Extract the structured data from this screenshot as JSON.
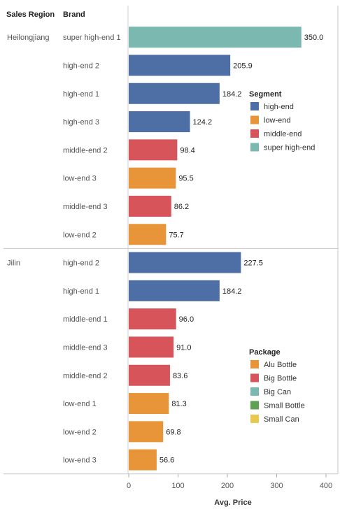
{
  "chart_data": {
    "type": "bar",
    "orientation": "horizontal",
    "row_headers": {
      "region": "Sales Region",
      "brand": "Brand"
    },
    "xlabel": "Avg. Price",
    "xlim": [
      0,
      400
    ],
    "xticks": [
      0,
      100,
      200,
      300,
      400
    ],
    "groups": [
      {
        "region": "Heilongjiang",
        "bars": [
          {
            "brand": "super high-end 1",
            "value": 350.0,
            "label": "350.0",
            "segment": "super high-end"
          },
          {
            "brand": "high-end 2",
            "value": 205.9,
            "label": "205.9",
            "segment": "high-end"
          },
          {
            "brand": "high-end 1",
            "value": 184.2,
            "label": "184.2",
            "segment": "high-end"
          },
          {
            "brand": "high-end 3",
            "value": 124.2,
            "label": "124.2",
            "segment": "high-end"
          },
          {
            "brand": "middle-end 2",
            "value": 98.4,
            "label": "98.4",
            "segment": "middle-end"
          },
          {
            "brand": "low-end 3",
            "value": 95.5,
            "label": "95.5",
            "segment": "low-end"
          },
          {
            "brand": "middle-end 3",
            "value": 86.2,
            "label": "86.2",
            "segment": "middle-end"
          },
          {
            "brand": "low-end 2",
            "value": 75.7,
            "label": "75.7",
            "segment": "low-end"
          }
        ]
      },
      {
        "region": "Jilin",
        "bars": [
          {
            "brand": "high-end 2",
            "value": 227.5,
            "label": "227.5",
            "segment": "high-end"
          },
          {
            "brand": "high-end 1",
            "value": 184.2,
            "label": "184.2",
            "segment": "high-end"
          },
          {
            "brand": "middle-end 1",
            "value": 96.0,
            "label": "96.0",
            "segment": "middle-end"
          },
          {
            "brand": "middle-end 3",
            "value": 91.0,
            "label": "91.0",
            "segment": "middle-end"
          },
          {
            "brand": "middle-end 2",
            "value": 83.6,
            "label": "83.6",
            "segment": "middle-end"
          },
          {
            "brand": "low-end 1",
            "value": 81.3,
            "label": "81.3",
            "segment": "low-end"
          },
          {
            "brand": "low-end 2",
            "value": 69.8,
            "label": "69.8",
            "segment": "low-end"
          },
          {
            "brand": "low-end 3",
            "value": 56.6,
            "label": "56.6",
            "segment": "low-end"
          }
        ]
      }
    ],
    "legends": [
      {
        "title": "Segment",
        "items": [
          {
            "label": "high-end",
            "color": "#4e6fa6"
          },
          {
            "label": "low-end",
            "color": "#e8953a"
          },
          {
            "label": "middle-end",
            "color": "#d6545a"
          },
          {
            "label": "super high-end",
            "color": "#7ab8b0"
          }
        ]
      },
      {
        "title": "Package",
        "items": [
          {
            "label": "Alu Bottle",
            "color": "#e8953a"
          },
          {
            "label": "Big Bottle",
            "color": "#d6545a"
          },
          {
            "label": "Big Can",
            "color": "#7ab8b0"
          },
          {
            "label": "Small Bottle",
            "color": "#5ea150"
          },
          {
            "label": "Small Can",
            "color": "#e8c84e"
          }
        ]
      }
    ],
    "colors": {
      "grid_line": "#d0d0d0",
      "divider": "#c8c8c8"
    }
  }
}
